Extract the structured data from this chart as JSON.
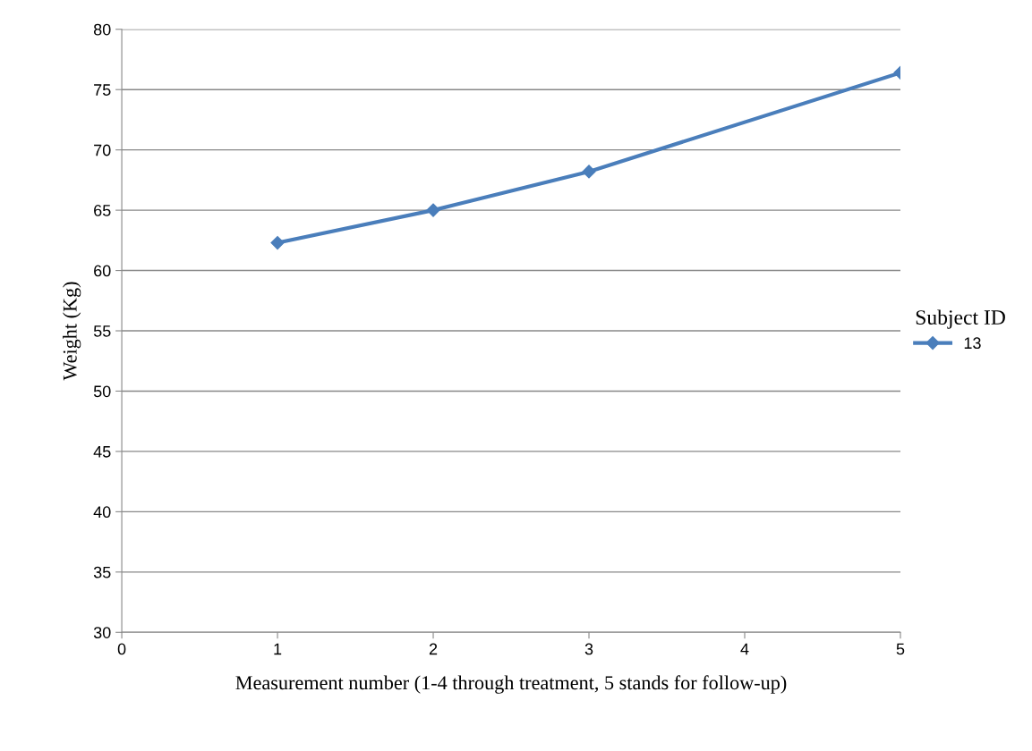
{
  "chart_data": {
    "type": "line",
    "xlabel": "Measurement number (1-4 through treatment, 5 stands for follow-up)",
    "ylabel": "Weight (Kg)",
    "legend_title": "Subject ID",
    "x": [
      1,
      2,
      3,
      5
    ],
    "series": [
      {
        "name": "13",
        "color": "#4a7ebb",
        "values": [
          62.3,
          65.0,
          68.2,
          76.4
        ]
      }
    ],
    "xlim": [
      0,
      5
    ],
    "xticks": [
      0,
      1,
      2,
      3,
      4,
      5
    ],
    "ylim": [
      30,
      80
    ],
    "yticks": [
      30,
      35,
      40,
      45,
      50,
      55,
      60,
      65,
      70,
      75,
      80
    ],
    "grid": "y",
    "legend": "right",
    "marker": "diamond",
    "line_style": "solid"
  }
}
